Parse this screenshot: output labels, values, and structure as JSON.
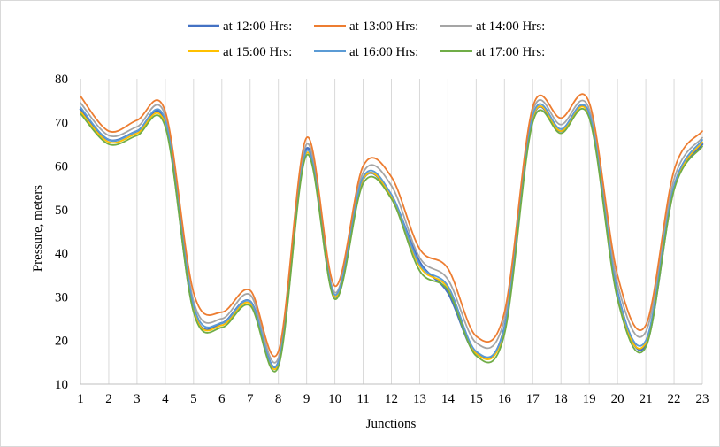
{
  "chart_data": {
    "type": "line",
    "title": "",
    "xlabel": "Junctions",
    "ylabel": "Pressure, meters",
    "categories": [
      "1",
      "2",
      "3",
      "4",
      "5",
      "6",
      "7",
      "8",
      "9",
      "10",
      "11",
      "12",
      "13",
      "14",
      "15",
      "16",
      "17",
      "18",
      "19",
      "20",
      "21",
      "22",
      "23"
    ],
    "ylim": [
      10,
      80
    ],
    "yticks": [
      "10",
      "20",
      "30",
      "40",
      "50",
      "60",
      "70",
      "80"
    ],
    "grid": "vertical",
    "legend_position": "top",
    "series": [
      {
        "name": "at 12:00 Hrs:",
        "color": "#4472C4",
        "values": [
          73,
          66,
          68,
          70,
          27,
          24,
          29,
          15,
          64,
          30,
          57,
          53,
          38,
          31,
          17,
          23,
          71,
          68,
          72,
          31,
          19,
          55,
          65
        ]
      },
      {
        "name": "at 13:00 Hrs:",
        "color": "#ED7D31",
        "values": [
          76,
          68,
          70.5,
          72.5,
          31,
          26.5,
          31.5,
          17.5,
          66.5,
          32.5,
          60,
          57.5,
          41,
          36.5,
          21,
          26.5,
          73.5,
          71,
          74.5,
          35,
          23.5,
          59,
          68
        ]
      },
      {
        "name": "at 14:00 Hrs:",
        "color": "#A5A5A5",
        "values": [
          74.5,
          67,
          69,
          71.5,
          29,
          25,
          30.5,
          16,
          65,
          31,
          58.5,
          55.5,
          39,
          34,
          19.5,
          25,
          72.5,
          69.5,
          73,
          33,
          22,
          57,
          66.5
        ]
      },
      {
        "name": "at 15:00 Hrs:",
        "color": "#FFC000",
        "values": [
          72.5,
          65.5,
          67.5,
          69.5,
          27,
          23.5,
          28.5,
          14.5,
          63,
          30,
          57,
          53,
          37,
          32,
          17,
          22.5,
          71,
          68,
          71.5,
          30,
          19.5,
          55,
          65.5
        ]
      },
      {
        "name": "at 16:00 Hrs:",
        "color": "#5B9BD5",
        "values": [
          73.5,
          66,
          68,
          70.5,
          28,
          24,
          29,
          15,
          63.5,
          30.5,
          57.5,
          53.5,
          37.5,
          32.5,
          17.5,
          23,
          71.5,
          68.5,
          72,
          31,
          20,
          55.5,
          66
        ]
      },
      {
        "name": "at 17:00 Hrs:",
        "color": "#70AD47",
        "values": [
          72,
          65,
          67,
          69,
          26.5,
          23,
          28,
          14,
          62.5,
          29.5,
          56,
          52.5,
          36,
          31.5,
          16.5,
          21.5,
          70,
          67.5,
          71,
          29.5,
          18.5,
          54.5,
          64.5
        ]
      }
    ]
  }
}
